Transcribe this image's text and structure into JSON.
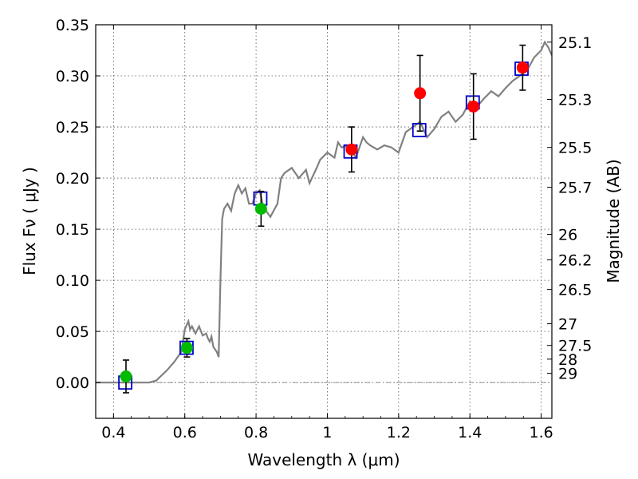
{
  "chart_data": {
    "type": "scatter",
    "title": "",
    "xlabel": "Wavelength  λ (μm)",
    "ylabel": "Flux  Fν  ( μJy )",
    "y2label": "Magnitude (AB)",
    "xlim": [
      0.35,
      1.63
    ],
    "ylim": [
      -0.035,
      0.35
    ],
    "xticks": [
      0.4,
      0.6,
      0.8,
      1.0,
      1.2,
      1.4,
      1.6
    ],
    "xtick_labels": [
      "0.4",
      "0.6",
      "0.8",
      "1",
      "1.2",
      "1.4",
      "1.6"
    ],
    "yticks": [
      0.0,
      0.05,
      0.1,
      0.15,
      0.2,
      0.25,
      0.3,
      0.35
    ],
    "ytick_labels": [
      "0.00",
      "0.05",
      "0.10",
      "0.15",
      "0.20",
      "0.25",
      "0.30",
      "0.35"
    ],
    "y2ticks": [
      {
        "label": "25.1",
        "flux": 0.333
      },
      {
        "label": "25.3",
        "flux": 0.277
      },
      {
        "label": "25.5",
        "flux": 0.23
      },
      {
        "label": "25.7",
        "flux": 0.191
      },
      {
        "label": "26",
        "flux": 0.145
      },
      {
        "label": "26.2",
        "flux": 0.12
      },
      {
        "label": "26.5",
        "flux": 0.091
      },
      {
        "label": "27",
        "flux": 0.0575
      },
      {
        "label": "27.5",
        "flux": 0.0363
      },
      {
        "label": "28",
        "flux": 0.0229
      },
      {
        "label": "29",
        "flux": 0.0091
      }
    ],
    "grid": true,
    "series": [
      {
        "style": "line",
        "color": "#808080",
        "x": [
          0.35,
          0.5,
          0.52,
          0.55,
          0.57,
          0.58,
          0.59,
          0.6,
          0.61,
          0.615,
          0.62,
          0.63,
          0.64,
          0.65,
          0.66,
          0.665,
          0.67,
          0.675,
          0.68,
          0.69,
          0.695,
          0.7,
          0.705,
          0.71,
          0.72,
          0.73,
          0.74,
          0.75,
          0.76,
          0.77,
          0.78,
          0.79,
          0.8,
          0.81,
          0.82,
          0.84,
          0.86,
          0.87,
          0.88,
          0.9,
          0.92,
          0.94,
          0.95,
          0.97,
          0.98,
          1.0,
          1.02,
          1.03,
          1.04,
          1.06,
          1.08,
          1.1,
          1.11,
          1.12,
          1.14,
          1.16,
          1.18,
          1.2,
          1.21,
          1.22,
          1.24,
          1.26,
          1.28,
          1.3,
          1.32,
          1.34,
          1.36,
          1.38,
          1.4,
          1.42,
          1.44,
          1.46,
          1.48,
          1.5,
          1.52,
          1.54,
          1.56,
          1.58,
          1.6,
          1.61,
          1.62,
          1.63
        ],
        "y": [
          0.0,
          0.0,
          0.002,
          0.012,
          0.02,
          0.025,
          0.03,
          0.052,
          0.06,
          0.052,
          0.055,
          0.048,
          0.055,
          0.046,
          0.048,
          0.043,
          0.04,
          0.045,
          0.035,
          0.03,
          0.025,
          0.1,
          0.16,
          0.17,
          0.175,
          0.168,
          0.185,
          0.193,
          0.185,
          0.19,
          0.175,
          0.175,
          0.185,
          0.188,
          0.172,
          0.162,
          0.175,
          0.2,
          0.205,
          0.21,
          0.2,
          0.208,
          0.195,
          0.21,
          0.218,
          0.225,
          0.22,
          0.235,
          0.23,
          0.232,
          0.22,
          0.24,
          0.235,
          0.232,
          0.228,
          0.232,
          0.23,
          0.225,
          0.235,
          0.245,
          0.25,
          0.255,
          0.24,
          0.248,
          0.26,
          0.265,
          0.255,
          0.262,
          0.275,
          0.27,
          0.278,
          0.285,
          0.28,
          0.288,
          0.295,
          0.3,
          0.305,
          0.318,
          0.325,
          0.333,
          0.328,
          0.32
        ]
      },
      {
        "style": "markers",
        "marker": "square",
        "color": "#0000cc",
        "x": [
          0.433,
          0.605,
          0.812,
          1.065,
          1.258,
          1.408,
          1.545
        ],
        "y": [
          0.0,
          0.034,
          0.18,
          0.226,
          0.247,
          0.274,
          0.307
        ]
      },
      {
        "style": "markers",
        "marker": "circle",
        "color": "#00bb00",
        "x": [
          0.435,
          0.606,
          0.814
        ],
        "y": [
          0.006,
          0.034,
          0.17
        ],
        "err": [
          0.016,
          0.009,
          0.017
        ]
      },
      {
        "style": "markers",
        "marker": "circle",
        "color": "#ff0000",
        "x": [
          1.068,
          1.26,
          1.41,
          1.548
        ],
        "y": [
          0.228,
          0.283,
          0.27,
          0.308
        ],
        "err": [
          0.022,
          0.037,
          0.032,
          0.022
        ]
      }
    ]
  }
}
